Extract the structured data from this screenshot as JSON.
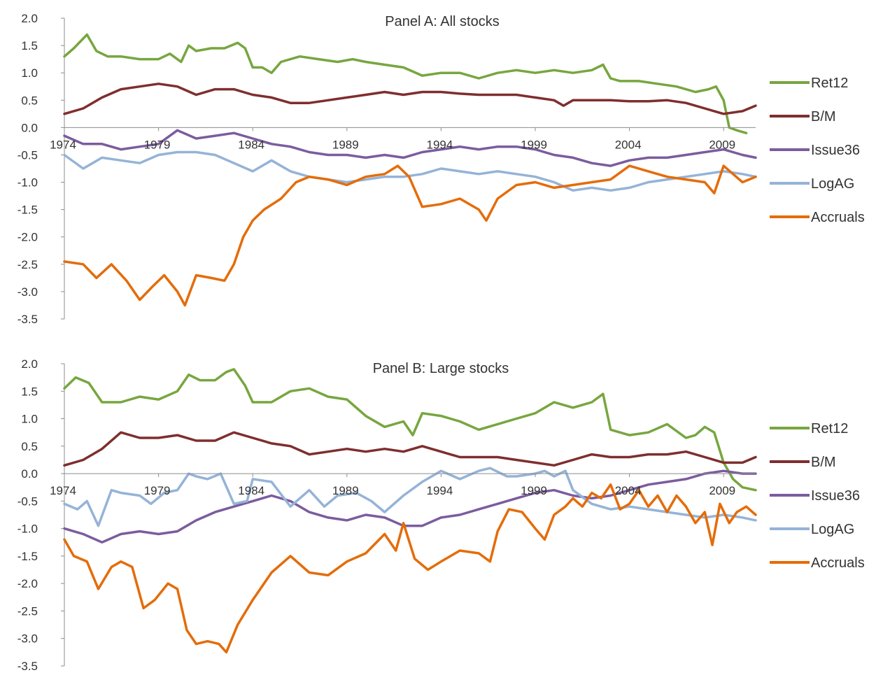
{
  "chart_data": [
    {
      "type": "line",
      "title": "Panel A: All stocks",
      "ylim": [
        -3.5,
        2.0
      ],
      "yticks": [
        "2.0",
        "1.5",
        "1.0",
        "0.5",
        "0.0",
        "-0.5",
        "-1.0",
        "-1.5",
        "-2.0",
        "-2.5",
        "-3.0",
        "-3.5"
      ],
      "xlim": [
        1974,
        2010.7
      ],
      "xticks": [
        "1974",
        "1979",
        "1984",
        "1989",
        "1994",
        "1999",
        "2004",
        "2009"
      ],
      "legend_position": "right",
      "series": [
        {
          "name": "Ret12",
          "color": "#77A63F",
          "x": [
            1974,
            1974.5,
            1975.2,
            1975.7,
            1976.3,
            1977,
            1978,
            1979,
            1979.6,
            1980.2,
            1980.6,
            1981,
            1981.8,
            1982.5,
            1983.2,
            1983.6,
            1984.0,
            1984.5,
            1985.0,
            1985.5,
            1986.5,
            1987.5,
            1988.5,
            1989.3,
            1990,
            1991,
            1992,
            1993,
            1994,
            1995,
            1996,
            1997,
            1998,
            1999,
            2000,
            2001,
            2002,
            2002.6,
            2003.0,
            2003.5,
            2004.5,
            2005.5,
            2006.5,
            2007.5,
            2008.2,
            2008.6,
            2009.0,
            2009.3,
            2009.7,
            2010.2
          ],
          "y": [
            1.3,
            1.45,
            1.7,
            1.4,
            1.3,
            1.3,
            1.25,
            1.25,
            1.35,
            1.2,
            1.5,
            1.4,
            1.45,
            1.45,
            1.55,
            1.45,
            1.1,
            1.1,
            1.0,
            1.2,
            1.3,
            1.25,
            1.2,
            1.25,
            1.2,
            1.15,
            1.1,
            0.95,
            1.0,
            1.0,
            0.9,
            1.0,
            1.05,
            1.0,
            1.05,
            1.0,
            1.05,
            1.15,
            0.9,
            0.85,
            0.85,
            0.8,
            0.75,
            0.65,
            0.7,
            0.75,
            0.5,
            0.0,
            -0.05,
            -0.1
          ]
        },
        {
          "name": "B/M",
          "color": "#7F2E2E",
          "x": [
            1974,
            1975,
            1976,
            1977,
            1978,
            1979,
            1980,
            1981,
            1982,
            1983,
            1984,
            1985,
            1986,
            1987,
            1988,
            1989,
            1990,
            1991,
            1992,
            1993,
            1994,
            1995,
            1996,
            1997,
            1998,
            1999,
            2000,
            2000.5,
            2001,
            2002,
            2003,
            2004,
            2005,
            2006,
            2007,
            2008,
            2009,
            2010,
            2010.7
          ],
          "y": [
            0.25,
            0.35,
            0.55,
            0.7,
            0.75,
            0.8,
            0.75,
            0.6,
            0.7,
            0.7,
            0.6,
            0.55,
            0.45,
            0.45,
            0.5,
            0.55,
            0.6,
            0.65,
            0.6,
            0.65,
            0.65,
            0.62,
            0.6,
            0.6,
            0.6,
            0.55,
            0.5,
            0.4,
            0.5,
            0.5,
            0.5,
            0.48,
            0.48,
            0.5,
            0.45,
            0.35,
            0.25,
            0.3,
            0.4
          ]
        },
        {
          "name": "Issue36",
          "color": "#7B5C9E",
          "x": [
            1974,
            1975,
            1976,
            1977,
            1978,
            1979,
            1980,
            1981,
            1982,
            1983,
            1984,
            1985,
            1986,
            1987,
            1988,
            1989,
            1990,
            1991,
            1992,
            1993,
            1994,
            1995,
            1996,
            1997,
            1998,
            1999,
            2000,
            2001,
            2002,
            2003,
            2004,
            2005,
            2006,
            2007,
            2008,
            2009,
            2010,
            2010.7
          ],
          "y": [
            -0.15,
            -0.3,
            -0.3,
            -0.4,
            -0.35,
            -0.3,
            -0.05,
            -0.2,
            -0.15,
            -0.1,
            -0.2,
            -0.3,
            -0.35,
            -0.45,
            -0.5,
            -0.5,
            -0.55,
            -0.5,
            -0.55,
            -0.45,
            -0.4,
            -0.35,
            -0.4,
            -0.35,
            -0.35,
            -0.4,
            -0.5,
            -0.55,
            -0.65,
            -0.7,
            -0.6,
            -0.55,
            -0.55,
            -0.5,
            -0.45,
            -0.4,
            -0.5,
            -0.55
          ]
        },
        {
          "name": "LogAG",
          "color": "#95B3D7",
          "x": [
            1974,
            1975,
            1976,
            1977,
            1978,
            1979,
            1980,
            1981,
            1982,
            1983,
            1984,
            1985,
            1986,
            1987,
            1988,
            1989,
            1990,
            1991,
            1992,
            1993,
            1994,
            1995,
            1996,
            1997,
            1998,
            1999,
            2000,
            2001,
            2002,
            2003,
            2004,
            2005,
            2006,
            2007,
            2008,
            2009,
            2010,
            2010.7
          ],
          "y": [
            -0.5,
            -0.75,
            -0.55,
            -0.6,
            -0.65,
            -0.5,
            -0.45,
            -0.45,
            -0.5,
            -0.65,
            -0.8,
            -0.6,
            -0.8,
            -0.9,
            -0.95,
            -1.0,
            -0.95,
            -0.9,
            -0.9,
            -0.85,
            -0.75,
            -0.8,
            -0.85,
            -0.8,
            -0.85,
            -0.9,
            -1.0,
            -1.15,
            -1.1,
            -1.15,
            -1.1,
            -1.0,
            -0.95,
            -0.9,
            -0.85,
            -0.8,
            -0.85,
            -0.9
          ]
        },
        {
          "name": "Accruals",
          "color": "#E46C0A",
          "x": [
            1974,
            1975,
            1975.7,
            1976.5,
            1977.3,
            1978,
            1978.7,
            1979.3,
            1980,
            1980.4,
            1981,
            1981.8,
            1982.5,
            1983.0,
            1983.5,
            1984,
            1984.6,
            1985.5,
            1986.3,
            1987,
            1988,
            1989,
            1990,
            1991,
            1991.7,
            1992.3,
            1993,
            1994,
            1995,
            1996,
            1996.4,
            1997,
            1998,
            1999,
            2000,
            2001,
            2002,
            2003,
            2004,
            2005,
            2006,
            2007,
            2008,
            2008.5,
            2009,
            2009.5,
            2010,
            2010.7
          ],
          "y": [
            -2.45,
            -2.5,
            -2.75,
            -2.5,
            -2.8,
            -3.15,
            -2.9,
            -2.7,
            -3.0,
            -3.25,
            -2.7,
            -2.75,
            -2.8,
            -2.5,
            -2.0,
            -1.7,
            -1.5,
            -1.3,
            -1.0,
            -0.9,
            -0.95,
            -1.05,
            -0.9,
            -0.85,
            -0.7,
            -0.9,
            -1.45,
            -1.4,
            -1.3,
            -1.5,
            -1.7,
            -1.3,
            -1.05,
            -1.0,
            -1.1,
            -1.05,
            -1.0,
            -0.95,
            -0.7,
            -0.8,
            -0.9,
            -0.95,
            -1.0,
            -1.2,
            -0.7,
            -0.85,
            -1.0,
            -0.9
          ]
        }
      ]
    },
    {
      "type": "line",
      "title": "Panel B: Large stocks",
      "ylim": [
        -3.5,
        2.0
      ],
      "yticks": [
        "2.0",
        "1.5",
        "1.0",
        "0.5",
        "0.0",
        "-0.5",
        "-1.0",
        "-1.5",
        "-2.0",
        "-2.5",
        "-3.0",
        "-3.5"
      ],
      "xlim": [
        1974,
        2010.7
      ],
      "xticks": [
        "1974",
        "1979",
        "1984",
        "1989",
        "1994",
        "1999",
        "2004",
        "2009"
      ],
      "legend_position": "right",
      "series": [
        {
          "name": "Ret12",
          "color": "#77A63F",
          "x": [
            1974,
            1974.6,
            1975.3,
            1976,
            1977,
            1978,
            1979,
            1980,
            1980.6,
            1981.2,
            1982,
            1982.6,
            1983.0,
            1983.6,
            1984,
            1985,
            1986,
            1987,
            1988,
            1989,
            1990,
            1991,
            1992,
            1992.5,
            1993,
            1994,
            1995,
            1996,
            1997,
            1998,
            1999,
            2000,
            2001,
            2001.5,
            2002,
            2002.6,
            2003,
            2004,
            2005,
            2006,
            2007,
            2007.5,
            2008,
            2008.5,
            2009,
            2009.5,
            2010,
            2010.7
          ],
          "y": [
            1.55,
            1.75,
            1.65,
            1.3,
            1.3,
            1.4,
            1.35,
            1.5,
            1.8,
            1.7,
            1.7,
            1.85,
            1.9,
            1.6,
            1.3,
            1.3,
            1.5,
            1.55,
            1.4,
            1.35,
            1.05,
            0.85,
            0.95,
            0.7,
            1.1,
            1.05,
            0.95,
            0.8,
            0.9,
            1.0,
            1.1,
            1.3,
            1.2,
            1.25,
            1.3,
            1.45,
            0.8,
            0.7,
            0.75,
            0.9,
            0.65,
            0.7,
            0.85,
            0.75,
            0.2,
            -0.1,
            -0.25,
            -0.3
          ]
        },
        {
          "name": "B/M",
          "color": "#7F2E2E",
          "x": [
            1974,
            1975,
            1976,
            1977,
            1978,
            1979,
            1980,
            1981,
            1982,
            1983,
            1984,
            1985,
            1986,
            1987,
            1988,
            1989,
            1990,
            1991,
            1992,
            1993,
            1994,
            1995,
            1996,
            1997,
            1998,
            1999,
            2000,
            2001,
            2002,
            2003,
            2004,
            2005,
            2006,
            2007,
            2008,
            2009,
            2010,
            2010.7
          ],
          "y": [
            0.15,
            0.25,
            0.45,
            0.75,
            0.65,
            0.65,
            0.7,
            0.6,
            0.6,
            0.75,
            0.65,
            0.55,
            0.5,
            0.35,
            0.4,
            0.45,
            0.4,
            0.45,
            0.4,
            0.5,
            0.4,
            0.3,
            0.3,
            0.3,
            0.25,
            0.2,
            0.15,
            0.25,
            0.35,
            0.3,
            0.3,
            0.35,
            0.35,
            0.4,
            0.3,
            0.2,
            0.2,
            0.3
          ]
        },
        {
          "name": "Issue36",
          "color": "#7B5C9E",
          "x": [
            1974,
            1975,
            1976,
            1977,
            1978,
            1979,
            1980,
            1981,
            1982,
            1983,
            1984,
            1985,
            1986,
            1987,
            1988,
            1989,
            1990,
            1991,
            1992,
            1993,
            1994,
            1995,
            1996,
            1997,
            1998,
            1999,
            2000,
            2001,
            2002,
            2003,
            2004,
            2005,
            2006,
            2007,
            2008,
            2009,
            2010,
            2010.7
          ],
          "y": [
            -1.0,
            -1.1,
            -1.25,
            -1.1,
            -1.05,
            -1.1,
            -1.05,
            -0.85,
            -0.7,
            -0.6,
            -0.5,
            -0.4,
            -0.5,
            -0.7,
            -0.8,
            -0.85,
            -0.75,
            -0.8,
            -0.95,
            -0.95,
            -0.8,
            -0.75,
            -0.65,
            -0.55,
            -0.45,
            -0.35,
            -0.3,
            -0.4,
            -0.45,
            -0.4,
            -0.3,
            -0.2,
            -0.15,
            -0.1,
            0.0,
            0.05,
            0.0,
            0.0
          ]
        },
        {
          "name": "LogAG",
          "color": "#95B3D7",
          "x": [
            1974,
            1974.7,
            1975.2,
            1975.8,
            1976.5,
            1977,
            1978,
            1978.6,
            1979.3,
            1980,
            1980.6,
            1981,
            1981.6,
            1982.3,
            1983,
            1983.7,
            1984,
            1985,
            1986,
            1987,
            1987.8,
            1988.5,
            1989.5,
            1990.3,
            1991,
            1992,
            1993,
            1994,
            1995,
            1996,
            1996.6,
            1997.5,
            1998,
            1999,
            1999.5,
            2000,
            2000.6,
            2001,
            2002,
            2003,
            2004,
            2005,
            2006,
            2007,
            2008,
            2009,
            2010,
            2010.7
          ],
          "y": [
            -0.55,
            -0.65,
            -0.5,
            -0.95,
            -0.3,
            -0.35,
            -0.4,
            -0.55,
            -0.35,
            -0.3,
            0.0,
            -0.05,
            -0.1,
            0.0,
            -0.55,
            -0.5,
            -0.1,
            -0.15,
            -0.6,
            -0.3,
            -0.6,
            -0.4,
            -0.35,
            -0.5,
            -0.7,
            -0.4,
            -0.15,
            0.05,
            -0.1,
            0.05,
            0.1,
            -0.05,
            -0.05,
            0.0,
            0.05,
            -0.05,
            0.05,
            -0.3,
            -0.55,
            -0.65,
            -0.6,
            -0.65,
            -0.7,
            -0.75,
            -0.8,
            -0.75,
            -0.8,
            -0.85
          ]
        },
        {
          "name": "Accruals",
          "color": "#E46C0A",
          "x": [
            1974,
            1974.5,
            1975.2,
            1975.8,
            1976.5,
            1977,
            1977.6,
            1978.2,
            1978.8,
            1979.5,
            1980,
            1980.5,
            1981,
            1981.6,
            1982.2,
            1982.6,
            1983.2,
            1984,
            1985,
            1986,
            1987,
            1988,
            1989,
            1990,
            1991,
            1991.6,
            1992,
            1992.6,
            1993.3,
            1994,
            1995,
            1996,
            1996.6,
            1997,
            1997.6,
            1998.3,
            1999,
            1999.5,
            2000,
            2000.6,
            2001,
            2001.5,
            2002,
            2002.5,
            2003,
            2003.5,
            2004,
            2004.5,
            2005,
            2005.5,
            2006,
            2006.5,
            2007,
            2007.5,
            2008,
            2008.4,
            2008.8,
            2009.3,
            2009.7,
            2010.2,
            2010.7
          ],
          "y": [
            -1.2,
            -1.5,
            -1.6,
            -2.1,
            -1.7,
            -1.6,
            -1.7,
            -2.45,
            -2.3,
            -2.0,
            -2.1,
            -2.85,
            -3.1,
            -3.05,
            -3.1,
            -3.25,
            -2.75,
            -2.3,
            -1.8,
            -1.5,
            -1.8,
            -1.85,
            -1.6,
            -1.45,
            -1.1,
            -1.4,
            -0.9,
            -1.55,
            -1.75,
            -1.6,
            -1.4,
            -1.45,
            -1.6,
            -1.05,
            -0.65,
            -0.7,
            -1.0,
            -1.2,
            -0.75,
            -0.6,
            -0.45,
            -0.6,
            -0.35,
            -0.45,
            -0.2,
            -0.65,
            -0.55,
            -0.3,
            -0.6,
            -0.4,
            -0.7,
            -0.4,
            -0.6,
            -0.9,
            -0.7,
            -1.3,
            -0.55,
            -0.9,
            -0.7,
            -0.6,
            -0.75
          ]
        }
      ]
    }
  ]
}
